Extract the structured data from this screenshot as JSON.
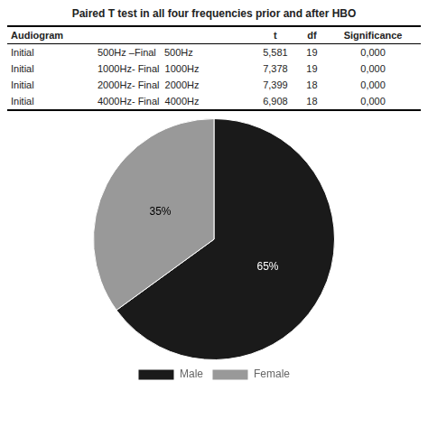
{
  "chart_data": [
    {
      "type": "table",
      "title": "Paired T test in all four frequencies prior and after HBO",
      "columns": [
        "Audiogram",
        null,
        "t",
        "df",
        "Significance"
      ],
      "rows": [
        [
          "Initial",
          "500Hz –Final   500Hz",
          "5,581",
          "19",
          "0,000"
        ],
        [
          "Initial",
          "1000Hz- Final  1000Hz",
          "7,378",
          "19",
          "0,000"
        ],
        [
          "Initial",
          "2000Hz- Final  2000Hz",
          "7,399",
          "18",
          "0,000"
        ],
        [
          "Initial",
          "4000Hz- Final  4000Hz",
          "6,908",
          "18",
          "0,000"
        ]
      ]
    },
    {
      "type": "pie",
      "categories": [
        "Male",
        "Female"
      ],
      "values": [
        65,
        35
      ],
      "value_labels": [
        "65%",
        "35%"
      ],
      "colors": [
        "#1a1a1a",
        "#999999"
      ],
      "data_labels": true,
      "legend": "bottom"
    }
  ]
}
